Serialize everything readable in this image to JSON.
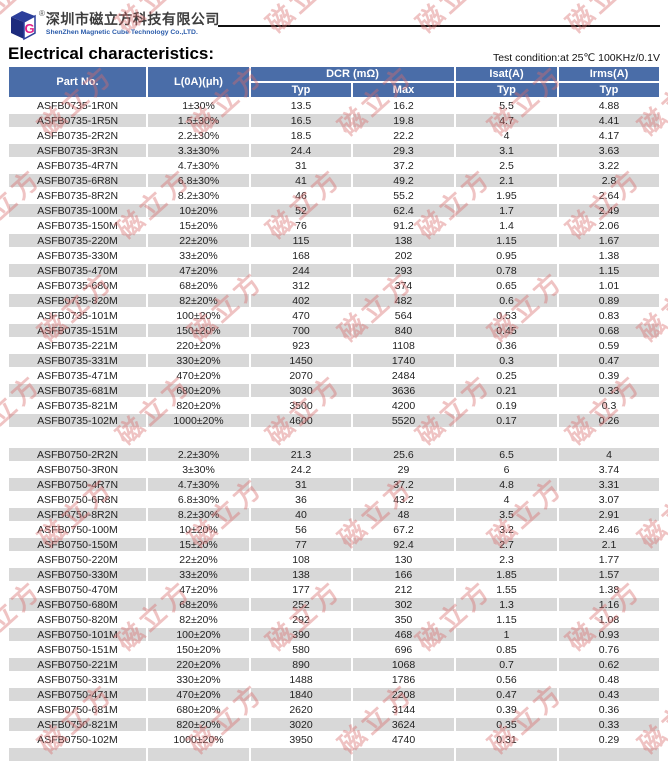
{
  "header": {
    "registered_mark": "®",
    "company_cn": "深圳市磁立方科技有限公司",
    "company_en": "ShenZhen Magnetic Cube Technology Co.,LTD.",
    "logo_letter": "G"
  },
  "title": "Electrical characteristics:",
  "test_condition": "Test condition:at 25℃  100KHz/0.1V",
  "watermark": {
    "text": "磁立方"
  },
  "colors": {
    "header_bg": "#4a6da8",
    "stripe": "#d8d8d8",
    "watermark": "#d96b6b"
  },
  "table": {
    "headers": {
      "part_no": "Part No.",
      "inductance": "L(0A)(μh)",
      "dcr_group": "DCR (mΩ)",
      "isat_group": "Isat(A)",
      "irms_group": "Irms(A)",
      "dcr_typ": "Typ",
      "dcr_max": "Max",
      "isat_typ": "Typ",
      "irms_typ": "Typ"
    },
    "sections": [
      {
        "first_stripe": "white",
        "rows": [
          [
            "ASFB0735-1R0N",
            "1±30%",
            "13.5",
            "16.2",
            "5.5",
            "4.88"
          ],
          [
            "ASFB0735-1R5N",
            "1.5±30%",
            "16.5",
            "19.8",
            "4.7",
            "4.41"
          ],
          [
            "ASFB0735-2R2N",
            "2.2±30%",
            "18.5",
            "22.2",
            "4",
            "4.17"
          ],
          [
            "ASFB0735-3R3N",
            "3.3±30%",
            "24.4",
            "29.3",
            "3.1",
            "3.63"
          ],
          [
            "ASFB0735-4R7N",
            "4.7±30%",
            "31",
            "37.2",
            "2.5",
            "3.22"
          ],
          [
            "ASFB0735-6R8N",
            "6.8±30%",
            "41",
            "49.2",
            "2.1",
            "2.8"
          ],
          [
            "ASFB0735-8R2N",
            "8.2±30%",
            "46",
            "55.2",
            "1.95",
            "2.64"
          ],
          [
            "ASFB0735-100M",
            "10±20%",
            "52",
            "62.4",
            "1.7",
            "2.49"
          ],
          [
            "ASFB0735-150M",
            "15±20%",
            "76",
            "91.2",
            "1.4",
            "2.06"
          ],
          [
            "ASFB0735-220M",
            "22±20%",
            "115",
            "138",
            "1.15",
            "1.67"
          ],
          [
            "ASFB0735-330M",
            "33±20%",
            "168",
            "202",
            "0.95",
            "1.38"
          ],
          [
            "ASFB0735-470M",
            "47±20%",
            "244",
            "293",
            "0.78",
            "1.15"
          ],
          [
            "ASFB0735-680M",
            "68±20%",
            "312",
            "374",
            "0.65",
            "1.01"
          ],
          [
            "ASFB0735-820M",
            "82±20%",
            "402",
            "482",
            "0.6",
            "0.89"
          ],
          [
            "ASFB0735-101M",
            "100±20%",
            "470",
            "564",
            "0.53",
            "0.83"
          ],
          [
            "ASFB0735-151M",
            "150±20%",
            "700",
            "840",
            "0.45",
            "0.68"
          ],
          [
            "ASFB0735-221M",
            "220±20%",
            "923",
            "1108",
            "0.36",
            "0.59"
          ],
          [
            "ASFB0735-331M",
            "330±20%",
            "1450",
            "1740",
            "0.3",
            "0.47"
          ],
          [
            "ASFB0735-471M",
            "470±20%",
            "2070",
            "2484",
            "0.25",
            "0.39"
          ],
          [
            "ASFB0735-681M",
            "680±20%",
            "3030",
            "3636",
            "0.21",
            "0.33"
          ],
          [
            "ASFB0735-821M",
            "820±20%",
            "3500",
            "4200",
            "0.19",
            "0.3"
          ],
          [
            "ASFB0735-102M",
            "1000±20%",
            "4600",
            "5520",
            "0.17",
            "0.26"
          ]
        ]
      },
      {
        "first_stripe": "gray",
        "trailing_empty_row": true,
        "rows": [
          [
            "ASFB0750-2R2N",
            "2.2±30%",
            "21.3",
            "25.6",
            "6.5",
            "4"
          ],
          [
            "ASFB0750-3R0N",
            "3±30%",
            "24.2",
            "29",
            "6",
            "3.74"
          ],
          [
            "ASFB0750-4R7N",
            "4.7±30%",
            "31",
            "37.2",
            "4.8",
            "3.31"
          ],
          [
            "ASFB0750-6R8N",
            "6.8±30%",
            "36",
            "43.2",
            "4",
            "3.07"
          ],
          [
            "ASFB0750-8R2N",
            "8.2±30%",
            "40",
            "48",
            "3.5",
            "2.91"
          ],
          [
            "ASFB0750-100M",
            "10±20%",
            "56",
            "67.2",
            "3.2",
            "2.46"
          ],
          [
            "ASFB0750-150M",
            "15±20%",
            "77",
            "92.4",
            "2.7",
            "2.1"
          ],
          [
            "ASFB0750-220M",
            "22±20%",
            "108",
            "130",
            "2.3",
            "1.77"
          ],
          [
            "ASFB0750-330M",
            "33±20%",
            "138",
            "166",
            "1.85",
            "1.57"
          ],
          [
            "ASFB0750-470M",
            "47±20%",
            "177",
            "212",
            "1.55",
            "1.38"
          ],
          [
            "ASFB0750-680M",
            "68±20%",
            "252",
            "302",
            "1.3",
            "1.16"
          ],
          [
            "ASFB0750-820M",
            "82±20%",
            "292",
            "350",
            "1.15",
            "1.08"
          ],
          [
            "ASFB0750-101M",
            "100±20%",
            "390",
            "468",
            "1",
            "0.93"
          ],
          [
            "ASFB0750-151M",
            "150±20%",
            "580",
            "696",
            "0.85",
            "0.76"
          ],
          [
            "ASFB0750-221M",
            "220±20%",
            "890",
            "1068",
            "0.7",
            "0.62"
          ],
          [
            "ASFB0750-331M",
            "330±20%",
            "1488",
            "1786",
            "0.56",
            "0.48"
          ],
          [
            "ASFB0750-471M",
            "470±20%",
            "1840",
            "2208",
            "0.47",
            "0.43"
          ],
          [
            "ASFB0750-681M",
            "680±20%",
            "2620",
            "3144",
            "0.39",
            "0.36"
          ],
          [
            "ASFB0750-821M",
            "820±20%",
            "3020",
            "3624",
            "0.35",
            "0.33"
          ],
          [
            "ASFB0750-102M",
            "1000±20%",
            "3950",
            "4740",
            "0.31",
            "0.29"
          ]
        ]
      }
    ]
  }
}
